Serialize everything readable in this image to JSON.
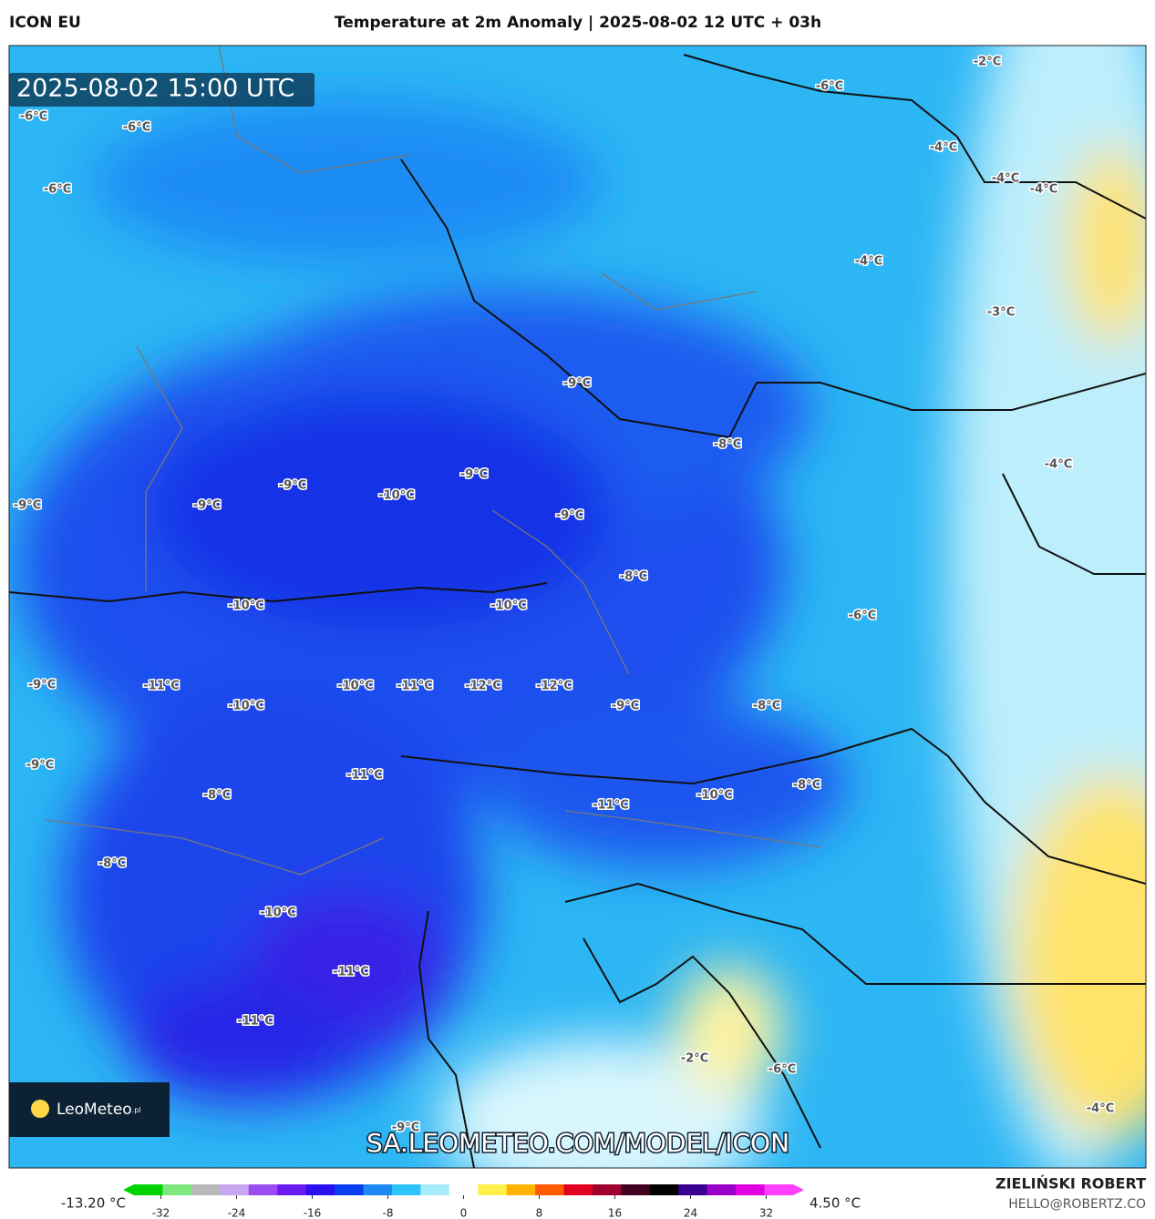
{
  "header": {
    "model": "ICON EU",
    "title": "Temperature at 2m Anomaly | 2025-08-02 12 UTC + 03h"
  },
  "map": {
    "valid_time": "2025-08-02 15:00 UTC",
    "contour_labels": [
      "-2°C",
      "-6°C",
      "-6°C",
      "-6°C",
      "-4°C",
      "-4°C",
      "-4°C",
      "-6°C",
      "-4°C",
      "-3°C",
      "-9°C",
      "-8°C",
      "-4°C",
      "-9°C",
      "-9°C",
      "-10°C",
      "-9°C",
      "-9°C",
      "-9°C",
      "-8°C",
      "-10°C",
      "-10°C",
      "-6°C",
      "-9°C",
      "-11°C",
      "-10°C",
      "-11°C",
      "-12°C",
      "-12°C",
      "-10°C",
      "-9°C",
      "-8°C",
      "-9°C",
      "-11°C",
      "-8°C",
      "-8°C",
      "-10°C",
      "-11°C",
      "-8°C",
      "-10°C",
      "-11°C",
      "-11°C",
      "-2°C",
      "-6°C",
      "-9°C",
      "-4°C"
    ],
    "watermark": "SA.LEOMETEO.COM/MODEL/ICON",
    "logo": {
      "name": "LeoMeteo",
      "suffix": ".pl"
    }
  },
  "colorbar": {
    "min_label": "-13.20 °C",
    "max_label": "4.50 °C",
    "lim": [
      -36,
      36
    ],
    "ticks": [
      -32,
      -24,
      -16,
      -8,
      0,
      8,
      16,
      24,
      32
    ],
    "colors": [
      "#00d400",
      "#7de87d",
      "#b8b8b8",
      "#c8a8f0",
      "#9a4cf0",
      "#6a1cf0",
      "#2a10f0",
      "#0a3cf0",
      "#1e88f5",
      "#2fc4f8",
      "#a8ecfb",
      "#ffffff",
      "#fff04a",
      "#ffb400",
      "#ff5a00",
      "#e00020",
      "#a00030",
      "#400020",
      "#000000",
      "#3a0090",
      "#9a00c8",
      "#e000e0",
      "#ff40ff"
    ]
  },
  "credits": {
    "author": "ZIELIŃSKI ROBERT",
    "contact": "HELLO@ROBERTZ.CO"
  }
}
